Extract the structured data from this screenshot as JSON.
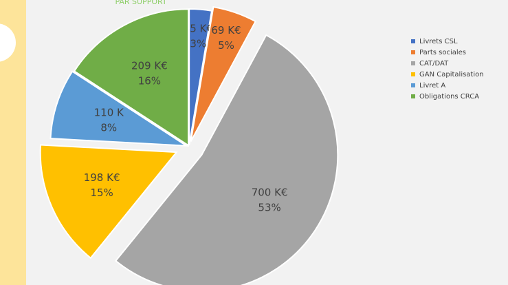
{
  "chart_data": {
    "type": "pie",
    "title": "PAR SUPPORT",
    "categories": [
      "Livrets CSL",
      "Parts sociales",
      "CAT/DAT",
      "GAN Capitalisation",
      "Livret A",
      "Obligations CRCA"
    ],
    "values": [
      35,
      69,
      700,
      198,
      110,
      209
    ],
    "value_labels": [
      "35 K€",
      "69 K€",
      "700 K€",
      "198 K€",
      "110 K",
      "209 K€"
    ],
    "percent_labels": [
      "3%",
      "5%",
      "53%",
      "15%",
      "8%",
      "16%"
    ],
    "colors": [
      "#4472c4",
      "#ed7d31",
      "#a5a5a5",
      "#ffc000",
      "#5b9bd5",
      "#70ad47"
    ],
    "legend": "right"
  }
}
